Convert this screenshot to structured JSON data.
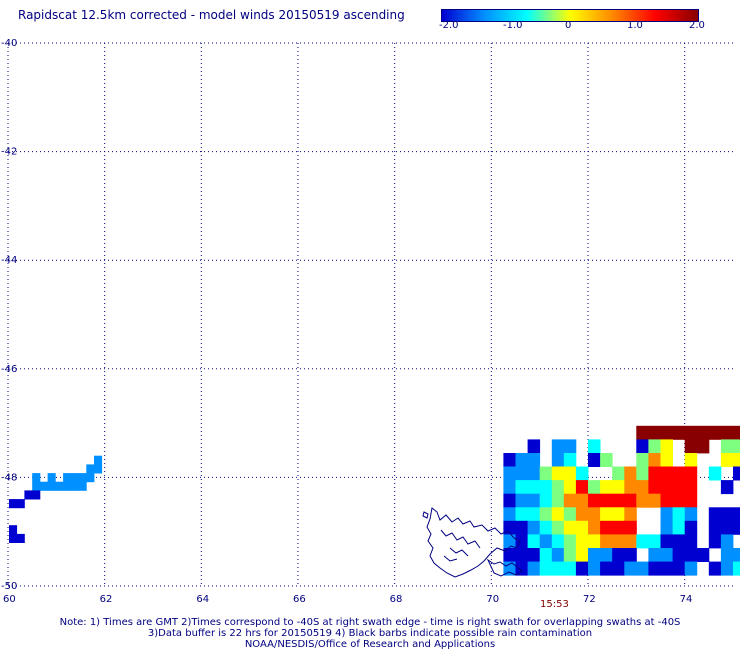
{
  "title": "Rapidscat 12.5km corrected - model winds 20150519 ascending",
  "colorbar": {
    "labels": [
      "-2.0",
      "-1.0",
      "0",
      "1.0",
      "2.0"
    ],
    "values": [
      -2.0,
      -1.0,
      0,
      1.0,
      2.0
    ],
    "colors": [
      "#0000d0",
      "#0090ff",
      "#00ffff",
      "#ffff00",
      "#ff8800",
      "#ff0000",
      "#880000"
    ]
  },
  "map": {
    "lat_labels": [
      "-40",
      "-42",
      "-44",
      "-46",
      "-48",
      "-50"
    ],
    "lon_labels": [
      "60",
      "62",
      "64",
      "66",
      "68",
      "70",
      "72",
      "74"
    ],
    "lat_range": [
      -50,
      -40
    ],
    "lon_range": [
      60,
      75
    ],
    "grid_color": "#000080",
    "coast_color": "#000080",
    "swath_time": "15:53",
    "swath_time_color": "#800000",
    "swath": {
      "lon_start": 70.25,
      "lat_top": -47.05,
      "cell_deg": 0.25,
      "rows": [
        "...........|||||||||||||||||||||||",
        "..A.BB.C...ADE.||.DD.||.B|||||||||",
        "ABB.BC.AD..DFE.E..EEBE..ED||||||||",
        "BBBDEEC..DFDGGGG.C.AA...DEE|||||||",
        "BCCCDEGDEEFFGGGG..A.....EGF||.|||.",
        "ABBCDFFGGGGFFGGG.........DF|||||||",
        "BCCDEDFFEEF..BCB.AAAAACBEFF|||||||",
        "AABCDEEFGGG..BCA.AAABFEFEEG||B|.||",
        "BACBCDEEFFFCCAAA.AB.BDEDDEF|||.|||",
        "AAACBDEBBAA.BBAAA.BBDEGGGEDCBAAB..",
        "BABCCCABAABBAAAB.ABCDE|||||CBBAAB.",
        ".....CBBAAAAAAA.CDEF.D|||||DEBCDB.",
        "......FFEEEFDEEFD.EF.G|||||DFB.C..",
        "......GGFFGEEEFE.DGG.F|||||GG.AD..",
        "......GGFGHFFEGGGFGF.E|||||EFB.B..",
        "......FGFFGEFGEGGEFF||HH||GGFGFEE.",
        "......EFGFFGEEGFGGFGF|||||GGHGFEEH",
        "......FFGFFEGGFGGGGGG|||||GGGGFFGG"
      ]
    },
    "left_cells": {
      "lat_top": -47.6,
      "lon_start": 60.02,
      "cell_deg": 0.16,
      "rows": [
        "...........B",
        "..........BB",
        "...B.B.BBBB.",
        "...BBBBBBB..",
        "..AA........",
        "AA..........",
        "............",
        "............",
        "A...........",
        "AA.........."
      ]
    },
    "palette": {
      "A": "#0000d0",
      "B": "#0090ff",
      "C": "#00ffff",
      "D": "#7fff7f",
      "E": "#ffff00",
      "F": "#ff8800",
      "G": "#ff0000",
      "H": "#ffffff",
      "|": "#880000"
    }
  },
  "footer": {
    "line1": "Note: 1) Times are GMT 2)Times correspond to -40S at right swath edge - time is right swath for overlapping swaths at -40S",
    "line2": "3)Data buffer is 22 hrs for 20150519 4) Black barbs indicate possible rain contamination",
    "line3": "NOAA/NESDIS/Office of Research and Applications"
  }
}
